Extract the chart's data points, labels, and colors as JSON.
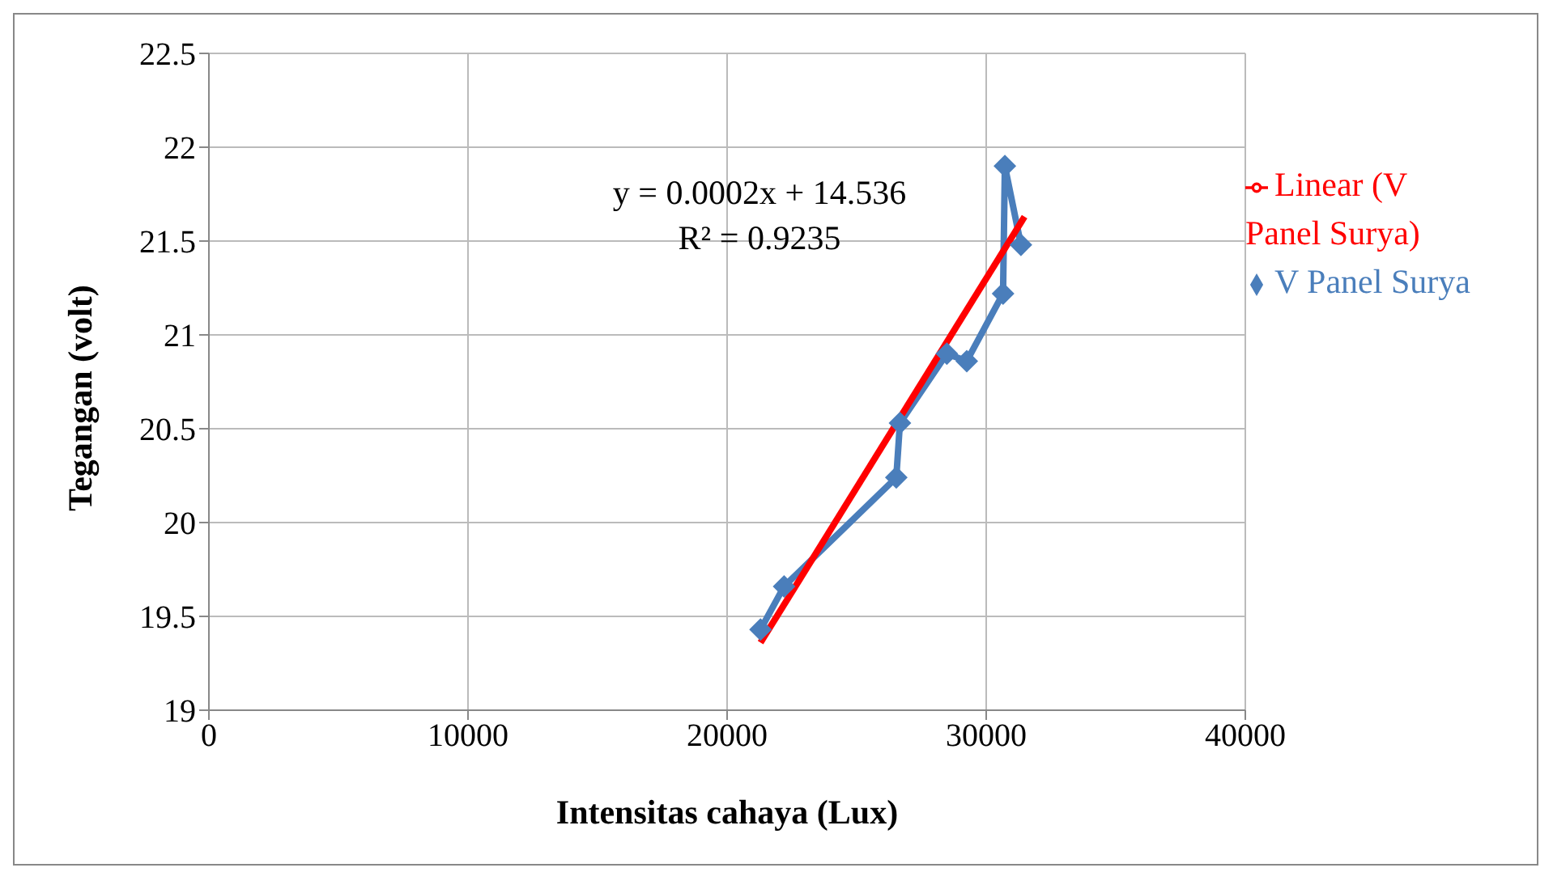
{
  "chart_data": {
    "type": "line",
    "xlabel": "Intensitas cahaya (Lux)",
    "ylabel": "Tegangan (volt)",
    "xlim": [
      0,
      40000
    ],
    "xticks": [
      0,
      10000,
      20000,
      30000,
      40000
    ],
    "ylim": [
      19,
      22.5
    ],
    "yticks": [
      19,
      19.5,
      20,
      20.5,
      21,
      21.5,
      22,
      22.5
    ],
    "grid": true,
    "legend": "right",
    "marker": "diamond",
    "line_style": "solid",
    "annotations": [
      "y = 0.0002x + 14.536",
      "R² = 0.9235"
    ],
    "series": [
      {
        "name": "V Panel Surya",
        "color": "#4a7ebb",
        "x": [
          21290,
          22200,
          26530,
          26670,
          28480,
          29250,
          30650,
          30720,
          31340
        ],
        "values": [
          19.43,
          19.66,
          20.24,
          20.53,
          20.9,
          20.86,
          21.22,
          21.9,
          21.48
        ]
      },
      {
        "name": "Linear (V Panel Surya)",
        "color": "#ff0000",
        "type": "line",
        "marker": "none",
        "x": [
          21290,
          31480
        ],
        "values": [
          19.36,
          21.63
        ]
      }
    ]
  }
}
